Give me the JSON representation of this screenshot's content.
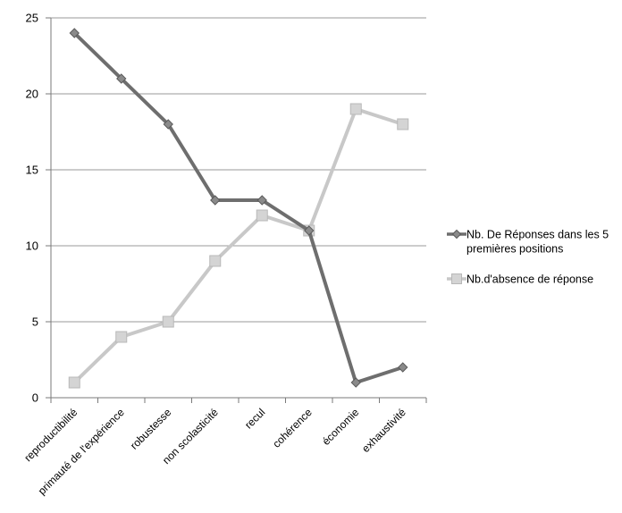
{
  "chart_data": {
    "type": "line",
    "categories": [
      "reproductibilité",
      "primauté de l'expérience",
      "robustesse",
      "non scolasticité",
      "recul",
      "cohérence",
      "économie",
      "exhaustivité"
    ],
    "series": [
      {
        "name": "Nb. De Réponses dans les 5 premières positions",
        "name_lines": [
          "Nb. De Réponses dans les 5",
          "premières positions"
        ],
        "values": [
          24,
          21,
          18,
          13,
          13,
          11,
          1,
          2
        ],
        "color": "#6e6e6e",
        "marker": "diamond"
      },
      {
        "name": "Nb.d'absence de réponse",
        "name_lines": [
          "Nb.d'absence de réponse"
        ],
        "values": [
          1,
          4,
          5,
          9,
          12,
          11,
          19,
          18
        ],
        "color": "#c8c8c8",
        "marker": "square"
      }
    ],
    "yticks": [
      "0",
      "5",
      "10",
      "15",
      "20",
      "25"
    ],
    "ylim": [
      0,
      25
    ],
    "grid": true,
    "legend": "right"
  }
}
